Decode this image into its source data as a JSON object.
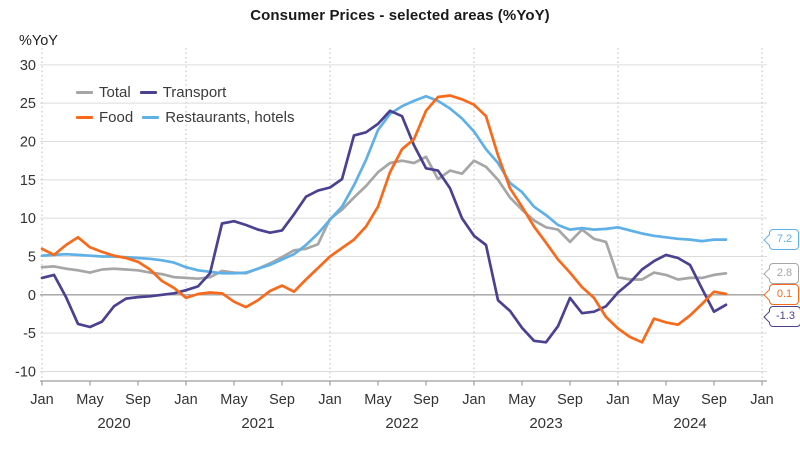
{
  "title": "Consumer Prices - selected areas (%YoY)",
  "y_axis_label": "%YoY",
  "legend": {
    "total": "Total",
    "transport": "Transport",
    "food": "Food",
    "restaurants": "Restaurants, hotels"
  },
  "colors": {
    "total": "#a6a6a6",
    "transport": "#4a4191",
    "food": "#f8691a",
    "restaurants": "#5fb0e6",
    "grid": "#dcdcdc",
    "zero_line": "#a0a0a0",
    "axis": "#9e9e9e",
    "year_divider": "#bdbdbd"
  },
  "end_labels": {
    "restaurants": "7.2",
    "total": "2.8",
    "food": "0.1",
    "transport": "-1.3"
  },
  "chart_data": {
    "type": "line",
    "x_unit": "month",
    "x_range": [
      "2020-01",
      "2024-10"
    ],
    "ylim": [
      -10,
      30
    ],
    "yticks": [
      30,
      25,
      20,
      15,
      10,
      5,
      0,
      -5,
      -10
    ],
    "x_tick_labels": [
      "Jan",
      "May",
      "Sep",
      "Jan",
      "May",
      "Sep",
      "Jan",
      "May",
      "Sep",
      "Jan",
      "May",
      "Sep",
      "Jan",
      "May",
      "Sep",
      "Jan"
    ],
    "year_labels": [
      "2020",
      "2021",
      "2022",
      "2023",
      "2024"
    ],
    "grid": true,
    "legend_position": "top-left-inside",
    "series": [
      {
        "key": "total",
        "name": "Total",
        "values": [
          3.6,
          3.7,
          3.4,
          3.2,
          2.9,
          3.3,
          3.4,
          3.3,
          3.2,
          2.9,
          2.7,
          2.3,
          2.2,
          2.1,
          2.3,
          3.1,
          2.9,
          2.8,
          3.4,
          4.1,
          4.9,
          5.8,
          6.0,
          6.6,
          9.9,
          11.1,
          12.7,
          14.2,
          16.0,
          17.2,
          17.5,
          17.2,
          18.0,
          15.1,
          16.2,
          15.8,
          17.5,
          16.7,
          15.0,
          12.7,
          11.1,
          9.7,
          8.8,
          8.5,
          6.9,
          8.5,
          7.3,
          6.9,
          2.3,
          2.0,
          2.0,
          2.9,
          2.6,
          2.0,
          2.2,
          2.2,
          2.6,
          2.8
        ]
      },
      {
        "key": "restaurants",
        "name": "Restaurants, hotels",
        "values": [
          5.1,
          5.2,
          5.3,
          5.2,
          5.1,
          5.0,
          5.0,
          4.9,
          4.8,
          4.7,
          4.5,
          4.2,
          3.6,
          3.2,
          3.0,
          2.8,
          2.8,
          2.9,
          3.4,
          3.9,
          4.6,
          5.3,
          6.5,
          8.0,
          9.8,
          11.5,
          14.3,
          17.6,
          21.5,
          23.6,
          24.6,
          25.3,
          25.9,
          25.3,
          24.3,
          23.0,
          21.3,
          19.0,
          17.2,
          14.6,
          13.4,
          11.5,
          10.4,
          9.1,
          8.5,
          8.7,
          8.5,
          8.6,
          8.8,
          8.4,
          8.0,
          7.7,
          7.5,
          7.3,
          7.2,
          7.0,
          7.2,
          7.2
        ]
      },
      {
        "key": "transport",
        "name": "Transport",
        "values": [
          2.2,
          2.6,
          -0.3,
          -3.8,
          -4.2,
          -3.5,
          -1.5,
          -0.5,
          -0.3,
          -0.2,
          0.0,
          0.2,
          0.6,
          1.1,
          2.8,
          9.3,
          9.6,
          9.1,
          8.5,
          8.1,
          8.4,
          10.5,
          12.8,
          13.6,
          14.0,
          15.1,
          20.8,
          21.2,
          22.3,
          24.0,
          23.3,
          19.5,
          16.5,
          16.2,
          13.9,
          10.0,
          7.7,
          6.5,
          -0.7,
          -2.1,
          -4.3,
          -6.0,
          -6.2,
          -4.1,
          -0.4,
          -2.4,
          -2.2,
          -1.5,
          0.3,
          1.6,
          3.3,
          4.4,
          5.2,
          4.8,
          3.9,
          0.8,
          -2.2,
          -1.3
        ]
      },
      {
        "key": "food",
        "name": "Food",
        "values": [
          6.0,
          5.2,
          6.5,
          7.5,
          6.2,
          5.6,
          5.1,
          4.8,
          4.3,
          3.3,
          1.8,
          0.9,
          -0.4,
          0.1,
          0.3,
          0.2,
          -0.9,
          -1.6,
          -0.7,
          0.5,
          1.2,
          0.4,
          2.0,
          3.5,
          5.0,
          6.1,
          7.2,
          8.9,
          11.5,
          16.0,
          19.0,
          20.3,
          24.0,
          25.8,
          26.0,
          25.5,
          24.8,
          23.3,
          18.2,
          13.9,
          11.5,
          8.9,
          6.8,
          4.6,
          2.9,
          1.0,
          -0.4,
          -2.9,
          -4.4,
          -5.5,
          -6.2,
          -3.1,
          -3.6,
          -3.9,
          -2.7,
          -1.2,
          0.4,
          0.1
        ]
      }
    ]
  }
}
